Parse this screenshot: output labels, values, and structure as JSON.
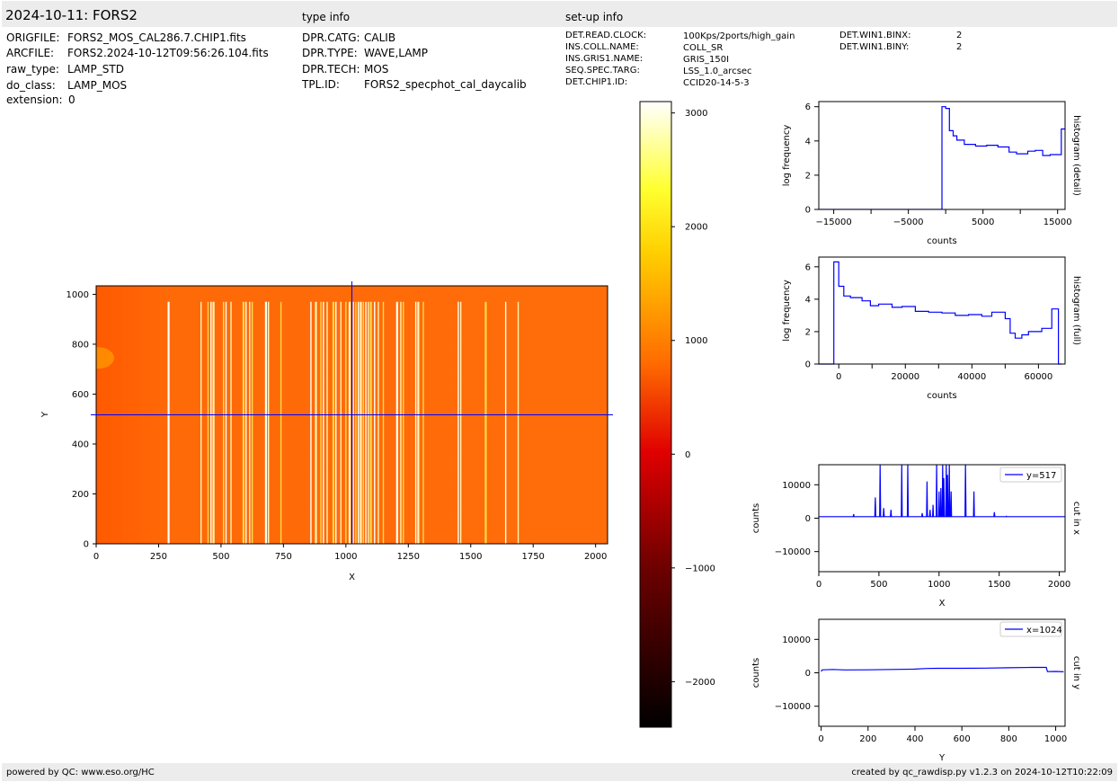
{
  "header": {
    "title": "2024-10-11: FORS2",
    "type_info_title": "type info",
    "setup_info_title": "set-up info"
  },
  "file_info": [
    {
      "key": "ORIGFILE:",
      "value": "FORS2_MOS_CAL286.7.CHIP1.fits"
    },
    {
      "key": "ARCFILE:",
      "value": "FORS2.2024-10-12T09:56:26.104.fits"
    },
    {
      "key": "raw_type:",
      "value": "LAMP_STD"
    },
    {
      "key": "do_class:",
      "value": "LAMP_MOS"
    },
    {
      "key": "extension:",
      "value": "0"
    }
  ],
  "type_info": [
    {
      "key": "DPR.CATG:",
      "value": "CALIB"
    },
    {
      "key": "DPR.TYPE:",
      "value": "WAVE,LAMP"
    },
    {
      "key": "DPR.TECH:",
      "value": "MOS"
    },
    {
      "key": "TPL.ID:",
      "value": "FORS2_specphot_cal_daycalib"
    }
  ],
  "setup_info": [
    {
      "key": "DET.READ.CLOCK:",
      "value": "100Kps/2ports/high_gain"
    },
    {
      "key": "INS.COLL.NAME:",
      "value": "COLL_SR"
    },
    {
      "key": "INS.GRIS1.NAME:",
      "value": "GRIS_150I"
    },
    {
      "key": "SEQ.SPEC.TARG:",
      "value": "LSS_1.0_arcsec"
    },
    {
      "key": "DET.CHIP1.ID:",
      "value": "CCID20-14-5-3"
    }
  ],
  "setup_info_2": [
    {
      "key": "DET.WIN1.BINX:",
      "value": "2"
    },
    {
      "key": "DET.WIN1.BINY:",
      "value": "2"
    }
  ],
  "footer": {
    "left": "powered by QC: www.eso.org/HC",
    "right": "created by qc_rawdisp.py v1.2.3 on 2024-10-12T10:22:09"
  },
  "chart_data": [
    {
      "type": "heatmap",
      "name": "image",
      "xlabel": "X",
      "ylabel": "Y",
      "xlim": [
        0,
        2048
      ],
      "ylim": [
        0,
        1034
      ],
      "xticks": [
        0,
        250,
        500,
        750,
        1000,
        1250,
        1500,
        1750,
        2000
      ],
      "yticks": [
        0,
        200,
        400,
        600,
        800,
        1000
      ],
      "cut_x": 1024,
      "cut_y": 517,
      "background_level": 450,
      "arc_lines_x": [
        290,
        420,
        448,
        460,
        470,
        510,
        520,
        540,
        590,
        600,
        615,
        625,
        680,
        690,
        740,
        860,
        880,
        900,
        910,
        925,
        950,
        960,
        980,
        1000,
        1015,
        1030,
        1040,
        1050,
        1060,
        1070,
        1080,
        1090,
        1100,
        1115,
        1130,
        1150,
        1205,
        1220,
        1230,
        1280,
        1290,
        1310,
        1450,
        1460,
        1560,
        1640,
        1690
      ],
      "colorbar": {
        "min": -2400,
        "max": 3100,
        "ticks": [
          -2000,
          -1000,
          0,
          1000,
          2000,
          3000
        ]
      }
    },
    {
      "type": "line",
      "name": "histogram-detail",
      "xlabel": "counts",
      "ylabel": "log frequency",
      "side_label": "histogram (detail)",
      "xlim": [
        -17000,
        16000
      ],
      "ylim": [
        0,
        6.3
      ],
      "xtick_labels": [
        -15000,
        -5000,
        5000,
        15000
      ],
      "xticks_minor": [
        -10000,
        0,
        10000
      ],
      "yticks": [
        0,
        2,
        4,
        6
      ],
      "x": [
        -17000,
        -500,
        -500,
        0,
        0,
        500,
        500,
        1000,
        1000,
        1500,
        1500,
        2500,
        2500,
        4000,
        4000,
        5500,
        5500,
        7000,
        7000,
        8500,
        8500,
        9500,
        9500,
        11000,
        11000,
        12000,
        12000,
        13000,
        13000,
        14000,
        14000,
        15500,
        15500,
        16000
      ],
      "y": [
        0,
        0,
        6.0,
        6.0,
        5.9,
        5.9,
        4.6,
        4.6,
        4.3,
        4.3,
        4.05,
        4.05,
        3.8,
        3.8,
        3.7,
        3.7,
        3.75,
        3.75,
        3.65,
        3.65,
        3.35,
        3.35,
        3.25,
        3.25,
        3.4,
        3.4,
        3.45,
        3.45,
        3.15,
        3.15,
        3.2,
        3.2,
        4.7,
        4.7
      ]
    },
    {
      "type": "line",
      "name": "histogram-full",
      "xlabel": "counts",
      "ylabel": "log frequency",
      "side_label": "histogram (full)",
      "xlim": [
        -6000,
        68000
      ],
      "ylim": [
        0,
        6.6
      ],
      "xticks": [
        0,
        20000,
        40000,
        60000
      ],
      "xticks_minor": [
        10000,
        30000,
        50000
      ],
      "yticks": [
        0,
        2,
        4,
        6
      ],
      "x": [
        -6000,
        -1500,
        -1500,
        0,
        0,
        1500,
        1500,
        3500,
        3500,
        7000,
        7000,
        9500,
        9500,
        12000,
        12000,
        16000,
        16000,
        19000,
        19000,
        23000,
        23000,
        27000,
        27000,
        31000,
        31000,
        35000,
        35000,
        39000,
        39000,
        43000,
        43000,
        46000,
        46000,
        50000,
        50000,
        51500,
        51500,
        53000,
        53000,
        55000,
        55000,
        57000,
        57000,
        61000,
        61000,
        64000,
        64000,
        66000,
        66000,
        67000
      ],
      "y": [
        0,
        0,
        6.3,
        6.3,
        4.8,
        4.8,
        4.2,
        4.2,
        4.1,
        4.1,
        3.9,
        3.9,
        3.6,
        3.6,
        3.7,
        3.7,
        3.5,
        3.5,
        3.55,
        3.55,
        3.25,
        3.25,
        3.2,
        3.2,
        3.15,
        3.15,
        3.0,
        3.0,
        3.05,
        3.05,
        2.95,
        2.95,
        3.2,
        3.2,
        2.8,
        2.8,
        1.9,
        1.9,
        1.6,
        1.6,
        1.8,
        1.8,
        2.0,
        2.0,
        2.2,
        2.2,
        3.4,
        3.4,
        0,
        0
      ]
    },
    {
      "type": "line",
      "name": "cut-in-x",
      "xlabel": "X",
      "ylabel": "counts",
      "side_label": "cut in x",
      "legend": "y=517",
      "legend_loc": "top-right",
      "xlim": [
        0,
        2048
      ],
      "ylim": [
        -16000,
        16000
      ],
      "xticks": [
        0,
        500,
        1000,
        1500,
        2000
      ],
      "yticks": [
        -10000,
        0,
        10000
      ],
      "baseline": 450,
      "peaks": [
        [
          290,
          1200
        ],
        [
          470,
          6200
        ],
        [
          510,
          16000
        ],
        [
          540,
          3000
        ],
        [
          600,
          2500
        ],
        [
          690,
          16000
        ],
        [
          740,
          16000
        ],
        [
          860,
          1500
        ],
        [
          900,
          11000
        ],
        [
          925,
          2500
        ],
        [
          950,
          4000
        ],
        [
          980,
          16000
        ],
        [
          1000,
          8000
        ],
        [
          1015,
          9000
        ],
        [
          1030,
          16000
        ],
        [
          1040,
          12000
        ],
        [
          1060,
          16000
        ],
        [
          1070,
          13000
        ],
        [
          1085,
          16000
        ],
        [
          1100,
          8000
        ],
        [
          1220,
          16000
        ],
        [
          1290,
          8000
        ],
        [
          1460,
          1800
        ],
        [
          1560,
          600
        ]
      ]
    },
    {
      "type": "line",
      "name": "cut-in-y",
      "xlabel": "Y",
      "ylabel": "counts",
      "side_label": "cut in y",
      "legend": "x=1024",
      "legend_loc": "top-right",
      "xlim": [
        -10,
        1040
      ],
      "ylim": [
        -16000,
        16000
      ],
      "xticks": [
        0,
        200,
        400,
        600,
        800,
        1000
      ],
      "yticks": [
        -10000,
        0,
        10000
      ],
      "x": [
        0,
        5,
        10,
        50,
        100,
        200,
        300,
        400,
        450,
        500,
        600,
        700,
        800,
        900,
        960,
        965,
        1000,
        1034
      ],
      "y": [
        400,
        900,
        900,
        1000,
        850,
        900,
        1000,
        1100,
        1300,
        1350,
        1350,
        1400,
        1500,
        1600,
        1600,
        350,
        400,
        300
      ]
    }
  ]
}
